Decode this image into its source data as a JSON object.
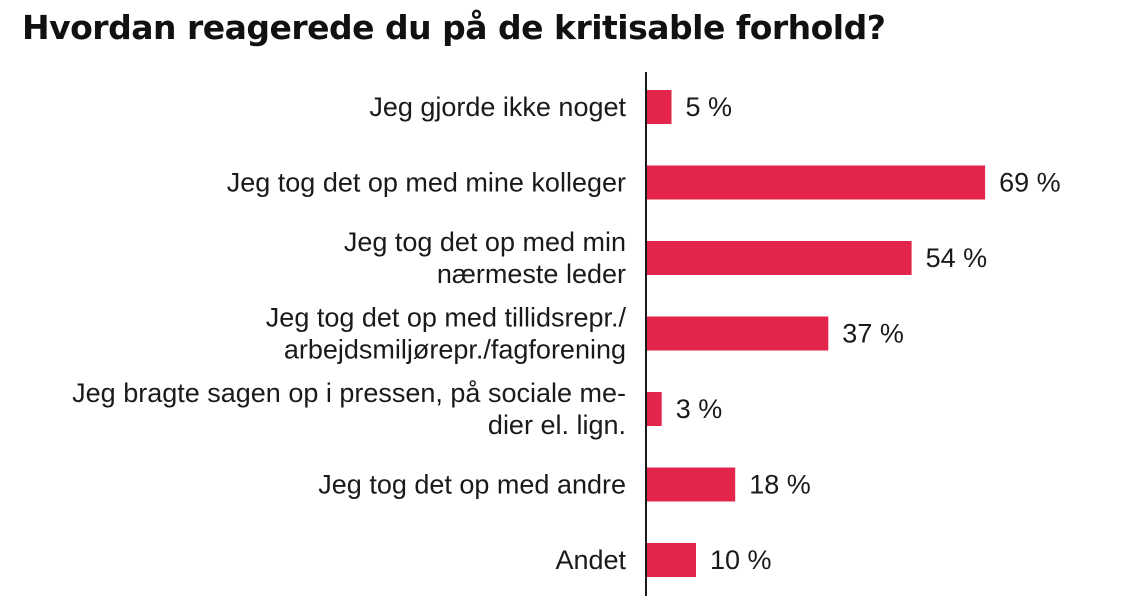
{
  "chart_data": {
    "type": "bar",
    "orientation": "horizontal",
    "title": "Hvordan reagerede du på de kritisable forhold?",
    "categories": [
      [
        "Jeg gjorde ikke noget"
      ],
      [
        "Jeg tog det op med mine kolleger"
      ],
      [
        "Jeg tog det op med min",
        "nærmeste leder"
      ],
      [
        "Jeg tog det op med tillidsrepr./",
        "arbejdsmiljørepr./fagforening"
      ],
      [
        "Jeg bragte sagen op i pressen, på sociale me-",
        "dier el. lign."
      ],
      [
        "Jeg tog det op med andre"
      ],
      [
        "Andet"
      ]
    ],
    "values": [
      5,
      69,
      54,
      37,
      3,
      18,
      10
    ],
    "value_labels": [
      "5 %",
      "69 %",
      "54 %",
      "37 %",
      "3 %",
      "18 %",
      "10 %"
    ],
    "unit": "%",
    "xlim": [
      0,
      100
    ],
    "grid": false,
    "bar_color": "#e3244b",
    "axis_color": "#1a1a1a"
  }
}
